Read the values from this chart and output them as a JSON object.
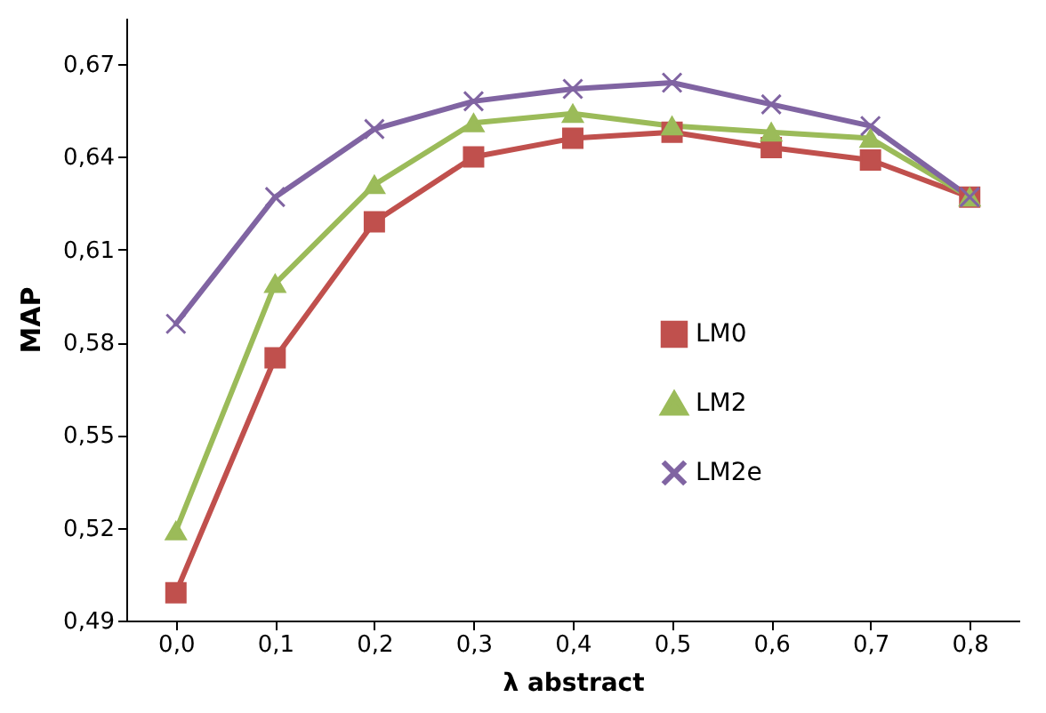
{
  "chart_data": {
    "type": "line",
    "xlabel": "λ abstract",
    "ylabel": "MAP",
    "categories": [
      "0,0",
      "0,1",
      "0,2",
      "0,3",
      "0,4",
      "0,5",
      "0,6",
      "0,7",
      "0,8"
    ],
    "ylim": [
      0.49,
      0.685
    ],
    "yticks": [
      {
        "value": 0.49,
        "label": "0,49"
      },
      {
        "value": 0.52,
        "label": "0,52"
      },
      {
        "value": 0.55,
        "label": "0,55"
      },
      {
        "value": 0.58,
        "label": "0,58"
      },
      {
        "value": 0.61,
        "label": "0,61"
      },
      {
        "value": 0.64,
        "label": "0,64"
      },
      {
        "value": 0.67,
        "label": "0,67"
      }
    ],
    "grid": false,
    "legend": "right",
    "line_style": "solid",
    "series": [
      {
        "name": "LM0",
        "color": "#c0504d",
        "marker": "square",
        "values": [
          0.499,
          0.575,
          0.619,
          0.64,
          0.646,
          0.648,
          0.643,
          0.639,
          0.627
        ]
      },
      {
        "name": "LM2",
        "color": "#9bbb59",
        "marker": "triangle",
        "values": [
          0.519,
          0.599,
          0.631,
          0.651,
          0.654,
          0.65,
          0.648,
          0.646,
          0.627
        ]
      },
      {
        "name": "LM2e",
        "color": "#8064a2",
        "marker": "cross",
        "values": [
          0.586,
          0.627,
          0.649,
          0.658,
          0.662,
          0.664,
          0.657,
          0.65,
          0.627
        ]
      }
    ]
  }
}
